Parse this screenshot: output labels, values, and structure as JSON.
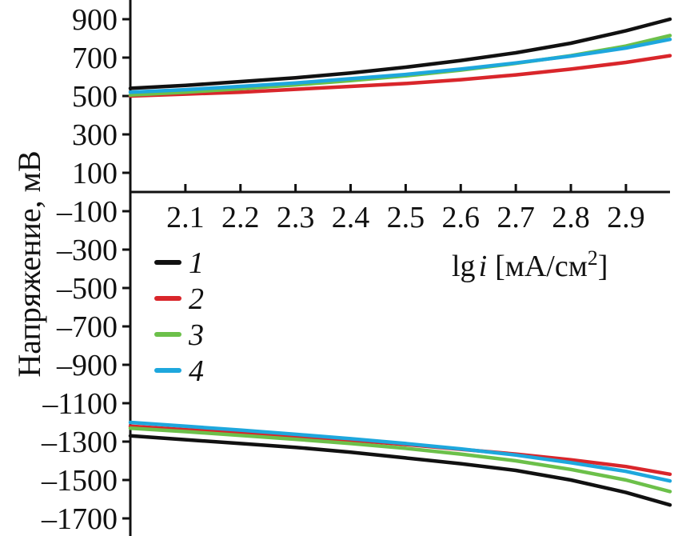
{
  "chart_data": {
    "type": "line",
    "ylabel": "Напряжение, мВ",
    "xlabel_prefix": "lg",
    "xlabel_var": "i",
    "xlabel_unit": "[мА/см",
    "xlabel_sup": "2",
    "xlabel_close": "]",
    "xlim": [
      2.0,
      2.98
    ],
    "ylim": [
      -1800,
      980
    ],
    "x_ticks": [
      2.1,
      2.2,
      2.3,
      2.4,
      2.5,
      2.6,
      2.7,
      2.8,
      2.9
    ],
    "x_tick_labels": [
      "2.1",
      "2.2",
      "2.3",
      "2.4",
      "2.5",
      "2.6",
      "2.7",
      "2.8",
      "2.9"
    ],
    "y_ticks": [
      900,
      700,
      500,
      300,
      100,
      -100,
      -300,
      -500,
      -700,
      -900,
      -1100,
      -1300,
      -1500,
      -1700
    ],
    "y_tick_labels": [
      "900",
      "700",
      "500",
      "300",
      "100",
      "–100",
      "–300",
      "–500",
      "–700",
      "–900",
      "–1100",
      "–1300",
      "–1500",
      "–1700"
    ],
    "legend_position": "left-middle",
    "series": [
      {
        "name": "1",
        "color": "#111111",
        "upper": {
          "x": [
            2.0,
            2.1,
            2.2,
            2.3,
            2.4,
            2.5,
            2.6,
            2.7,
            2.8,
            2.9,
            2.98
          ],
          "y": [
            540,
            555,
            575,
            595,
            620,
            650,
            685,
            725,
            775,
            840,
            900
          ]
        },
        "lower": {
          "x": [
            2.0,
            2.1,
            2.2,
            2.3,
            2.4,
            2.5,
            2.6,
            2.7,
            2.8,
            2.9,
            2.98
          ],
          "y": [
            -1270,
            -1290,
            -1310,
            -1330,
            -1355,
            -1385,
            -1415,
            -1450,
            -1500,
            -1565,
            -1630
          ]
        }
      },
      {
        "name": "2",
        "color": "#d9262b",
        "upper": {
          "x": [
            2.0,
            2.1,
            2.2,
            2.3,
            2.4,
            2.5,
            2.6,
            2.7,
            2.8,
            2.9,
            2.98
          ],
          "y": [
            500,
            510,
            520,
            535,
            550,
            565,
            585,
            610,
            640,
            675,
            710
          ]
        },
        "lower": {
          "x": [
            2.0,
            2.1,
            2.2,
            2.3,
            2.4,
            2.5,
            2.6,
            2.7,
            2.8,
            2.9,
            2.98
          ],
          "y": [
            -1220,
            -1238,
            -1255,
            -1275,
            -1293,
            -1315,
            -1340,
            -1365,
            -1395,
            -1430,
            -1470
          ]
        }
      },
      {
        "name": "3",
        "color": "#6cc04a",
        "upper": {
          "x": [
            2.0,
            2.1,
            2.2,
            2.3,
            2.4,
            2.5,
            2.6,
            2.7,
            2.8,
            2.9,
            2.98
          ],
          "y": [
            505,
            520,
            538,
            558,
            580,
            605,
            635,
            670,
            710,
            760,
            815
          ]
        },
        "lower": {
          "x": [
            2.0,
            2.1,
            2.2,
            2.3,
            2.4,
            2.5,
            2.6,
            2.7,
            2.8,
            2.9,
            2.98
          ],
          "y": [
            -1230,
            -1248,
            -1268,
            -1288,
            -1310,
            -1335,
            -1365,
            -1400,
            -1445,
            -1500,
            -1560
          ]
        }
      },
      {
        "name": "4",
        "color": "#1ea7dd",
        "upper": {
          "x": [
            2.0,
            2.1,
            2.2,
            2.3,
            2.4,
            2.5,
            2.6,
            2.7,
            2.8,
            2.9,
            2.98
          ],
          "y": [
            520,
            533,
            550,
            568,
            590,
            612,
            640,
            672,
            708,
            750,
            795
          ]
        },
        "lower": {
          "x": [
            2.0,
            2.1,
            2.2,
            2.3,
            2.4,
            2.5,
            2.6,
            2.7,
            2.8,
            2.9,
            2.98
          ],
          "y": [
            -1200,
            -1220,
            -1240,
            -1262,
            -1285,
            -1310,
            -1338,
            -1370,
            -1410,
            -1455,
            -1505
          ]
        }
      }
    ]
  }
}
